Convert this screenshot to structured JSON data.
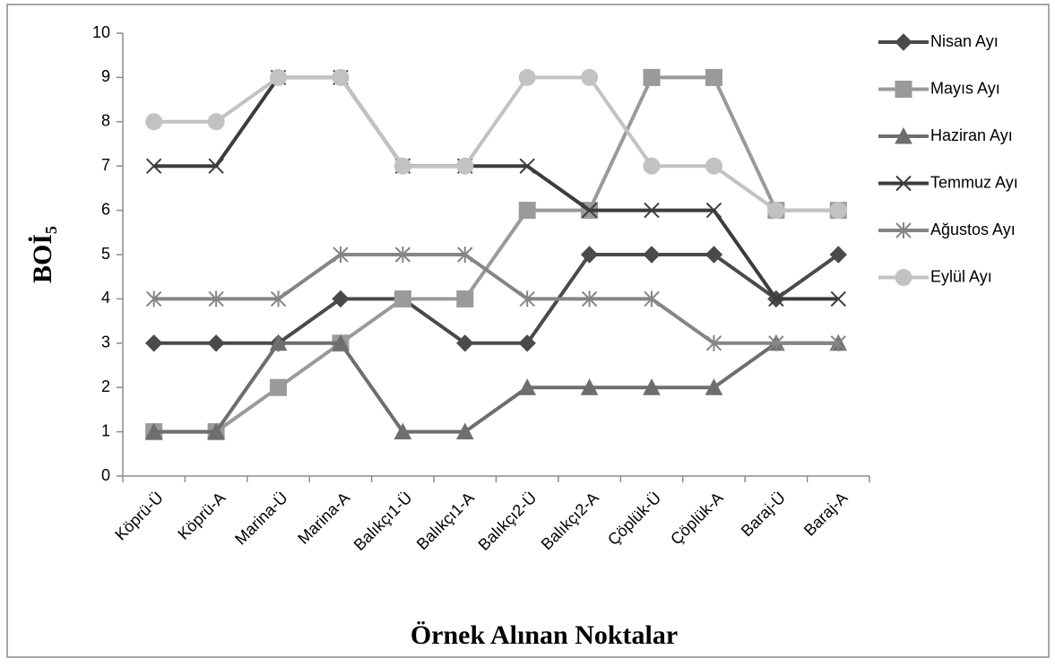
{
  "chart_data": {
    "type": "line",
    "x_label": "Örnek Alınan Noktalar",
    "y_label": "BOİ₅",
    "categories": [
      "Köprü-Ü",
      "Köprü-A",
      "Marina-Ü",
      "Marina-A",
      "Balıkçı1-Ü",
      "Balıkçı1-A",
      "Balıkçı2-Ü",
      "Balıkçı2-A",
      "Çöplük-Ü",
      "Çöplük-A",
      "Baraj-Ü",
      "Baraj-A"
    ],
    "series": [
      {
        "name": "Nisan Ayı",
        "color": "#4a4a4a",
        "marker": "diamond",
        "values": [
          3,
          3,
          3,
          4,
          4,
          3,
          3,
          5,
          5,
          5,
          4,
          5
        ]
      },
      {
        "name": "Mayıs Ayı",
        "color": "#9a9a9a",
        "marker": "square",
        "values": [
          1,
          1,
          2,
          3,
          4,
          4,
          6,
          6,
          9,
          9,
          6,
          6
        ]
      },
      {
        "name": "Haziran Ayı",
        "color": "#6e6e6e",
        "marker": "triangle",
        "values": [
          1,
          1,
          3,
          3,
          1,
          1,
          2,
          2,
          2,
          2,
          3,
          3
        ]
      },
      {
        "name": "Temmuz Ayı",
        "color": "#3c3c3c",
        "marker": "x",
        "values": [
          7,
          7,
          9,
          9,
          7,
          7,
          7,
          6,
          6,
          6,
          4,
          4
        ]
      },
      {
        "name": "Ağustos Ayı",
        "color": "#858585",
        "marker": "star",
        "values": [
          4,
          4,
          4,
          5,
          5,
          5,
          4,
          4,
          4,
          3,
          3,
          3
        ]
      },
      {
        "name": "Eylül Ayı",
        "color": "#c2c2c2",
        "marker": "circle",
        "values": [
          8,
          8,
          9,
          9,
          7,
          7,
          9,
          9,
          7,
          7,
          6,
          6
        ]
      }
    ],
    "ylim": [
      0,
      10
    ],
    "yticks": [
      0,
      1,
      2,
      3,
      4,
      5,
      6,
      7,
      8,
      9,
      10
    ],
    "grid": false,
    "legend": "right"
  }
}
